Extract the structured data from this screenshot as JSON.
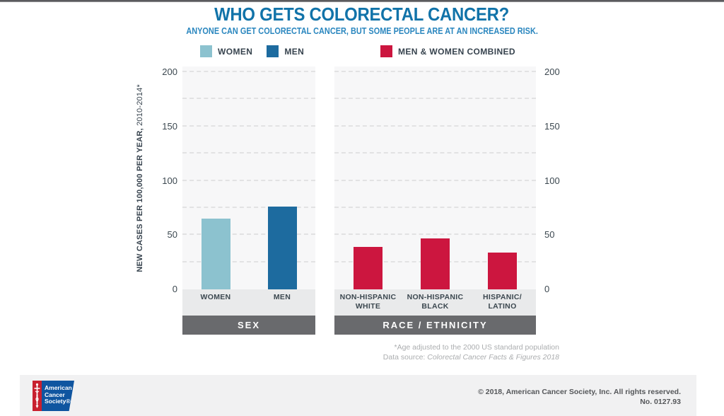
{
  "page": {
    "title": "WHO GETS COLORECTAL CANCER?",
    "subtitle": "ANYONE CAN GET COLORECTAL CANCER, BUT SOME PEOPLE ARE AT AN INCREASED RISK."
  },
  "colors": {
    "title_blue": "#1173a9",
    "subtitle_blue": "#2b87bf",
    "women_bar": "#8cc2cf",
    "men_bar": "#1d6b9f",
    "combined_bar": "#cc163f",
    "panel_footer_gray": "#696a6d",
    "acs_red": "#c8202f",
    "acs_blue": "#0f55a0"
  },
  "legend": {
    "women": "WOMEN",
    "men": "MEN",
    "combined": "MEN & WOMEN COMBINED"
  },
  "axis": {
    "ylabel_bold": "NEW CASES PER 100,000 PER YEAR,",
    "ylabel_regular": " 2010-2014*"
  },
  "chart_data": [
    {
      "type": "bar",
      "title": "SEX",
      "categories": [
        "WOMEN",
        "MEN"
      ],
      "values": [
        65,
        76
      ],
      "bar_colors": [
        "#8cc2cf",
        "#1d6b9f"
      ],
      "ylabel": "NEW CASES PER 100,000 PER YEAR, 2010-2014*",
      "ylim": [
        0,
        200
      ],
      "yticks": [
        0,
        50,
        100,
        150,
        200
      ],
      "grid_step": 25,
      "grid": "dashed horizontal",
      "legend": [
        "WOMEN",
        "MEN"
      ]
    },
    {
      "type": "bar",
      "title": "RACE / ETHNICITY",
      "categories": [
        "NON-HISPANIC\nWHITE",
        "NON-HISPANIC\nBLACK",
        "HISPANIC/\nLATINO"
      ],
      "values": [
        39,
        47,
        34
      ],
      "bar_colors": [
        "#cc163f",
        "#cc163f",
        "#cc163f"
      ],
      "ylabel": "NEW CASES PER 100,000 PER YEAR, 2010-2014*",
      "ylim": [
        0,
        200
      ],
      "yticks": [
        0,
        50,
        100,
        150,
        200
      ],
      "grid_step": 25,
      "grid": "dashed horizontal",
      "legend": [
        "MEN & WOMEN COMBINED"
      ]
    }
  ],
  "footnotes": {
    "line1": "*Age adjusted to the 2000 US standard population",
    "line2_prefix": "Data source: ",
    "line2_source": "Colorectal Cancer Facts & Figures 2018"
  },
  "footer": {
    "logo_line1": "American",
    "logo_line2": "Cancer",
    "logo_line3": "Society®",
    "copyright": "© 2018, American Cancer Society, Inc. All rights reserved.",
    "number": "No. 0127.93"
  }
}
